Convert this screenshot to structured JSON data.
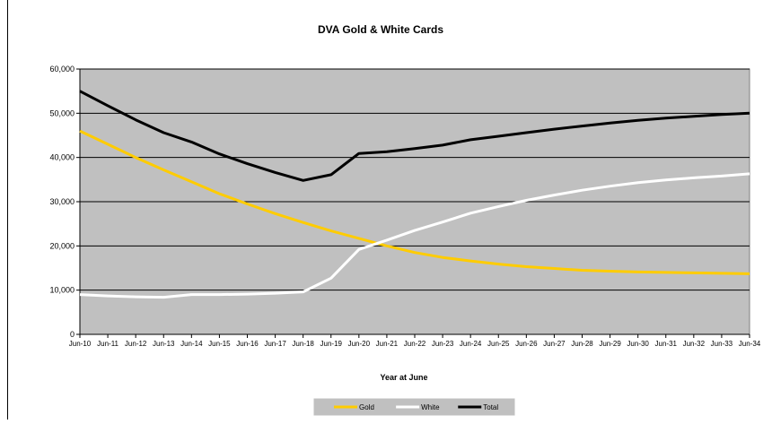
{
  "chart_data": {
    "type": "line",
    "title": "DVA Gold & White Cards",
    "xlabel": "Year at June",
    "ylabel": "",
    "ylim": [
      0,
      60000
    ],
    "yticks": [
      0,
      10000,
      20000,
      30000,
      40000,
      50000,
      60000
    ],
    "ytick_labels": [
      "0",
      "10,000",
      "20,000",
      "30,000",
      "40,000",
      "50,000",
      "60,000"
    ],
    "grid": true,
    "legend_position": "bottom-center",
    "plot_background": "#c0c0c0",
    "categories": [
      "Jun-10",
      "Jun-11",
      "Jun-12",
      "Jun-13",
      "Jun-14",
      "Jun-15",
      "Jun-16",
      "Jun-17",
      "Jun-18",
      "Jun-19",
      "Jun-20",
      "Jun-21",
      "Jun-22",
      "Jun-23",
      "Jun-24",
      "Jun-25",
      "Jun-26",
      "Jun-27",
      "Jun-28",
      "Jun-29",
      "Jun-30",
      "Jun-31",
      "Jun-32",
      "Jun-33",
      "Jun-34"
    ],
    "series": [
      {
        "name": "Gold",
        "color": "#ffcc00",
        "values": [
          46000,
          43000,
          40000,
          37200,
          34500,
          31800,
          29500,
          27300,
          25300,
          23400,
          21700,
          20000,
          18500,
          17400,
          16600,
          15900,
          15300,
          14900,
          14500,
          14300,
          14100,
          14000,
          13900,
          13800,
          13700
        ]
      },
      {
        "name": "White",
        "color": "#ffffff",
        "values": [
          9000,
          8700,
          8500,
          8400,
          9000,
          9000,
          9100,
          9300,
          9600,
          12700,
          19200,
          21300,
          23500,
          25400,
          27400,
          28900,
          30300,
          31500,
          32600,
          33500,
          34300,
          34900,
          35400,
          35800,
          36300
        ]
      },
      {
        "name": "Total",
        "color": "#000000",
        "values": [
          55000,
          51700,
          48500,
          45600,
          43500,
          40800,
          38600,
          36600,
          34800,
          36100,
          40900,
          41300,
          42000,
          42800,
          44000,
          44800,
          45600,
          46400,
          47100,
          47800,
          48400,
          48900,
          49300,
          49700,
          50000
        ]
      }
    ]
  }
}
